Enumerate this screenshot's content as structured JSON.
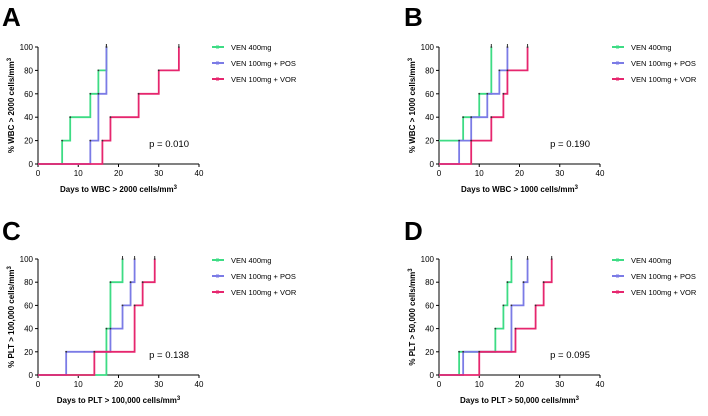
{
  "chart_data": [
    {
      "type": "line",
      "panel": "A",
      "title": "",
      "xlabel": "Days to WBC > 2000 cells/mm",
      "xlabel_sup": "3",
      "ylabel": "% WBC > 2000 cells/mm",
      "ylabel_sup": "3",
      "xlim": [
        0,
        40
      ],
      "ylim": [
        0,
        100
      ],
      "xticks": [
        "0",
        "10",
        "20",
        "30",
        "40"
      ],
      "yticks": [
        "0",
        "20",
        "40",
        "60",
        "80",
        "100"
      ],
      "p_value": "p = 0.010",
      "legend_position": "top-right",
      "series": [
        {
          "name": "VEN 400mg",
          "color": "#3ddc84",
          "steps": [
            [
              0,
              0
            ],
            [
              6,
              20
            ],
            [
              8,
              40
            ],
            [
              13,
              60
            ],
            [
              15,
              80
            ],
            [
              17,
              100
            ]
          ]
        },
        {
          "name": "VEN 100mg + POS",
          "color": "#7b7be6",
          "steps": [
            [
              0,
              0
            ],
            [
              13,
              20
            ],
            [
              15,
              60
            ],
            [
              17,
              100
            ]
          ]
        },
        {
          "name": "VEN 100mg + VOR",
          "color": "#e6266e",
          "steps": [
            [
              0,
              0
            ],
            [
              16,
              20
            ],
            [
              18,
              40
            ],
            [
              25,
              60
            ],
            [
              30,
              80
            ],
            [
              35,
              100
            ]
          ]
        }
      ]
    },
    {
      "type": "line",
      "panel": "B",
      "title": "",
      "xlabel": "Days to WBC > 1000 cells/mm",
      "xlabel_sup": "3",
      "ylabel": "% WBC > 1000 cells/mm",
      "ylabel_sup": "3",
      "xlim": [
        0,
        40
      ],
      "ylim": [
        0,
        100
      ],
      "xticks": [
        "0",
        "10",
        "20",
        "30",
        "40"
      ],
      "yticks": [
        "0",
        "20",
        "40",
        "60",
        "80",
        "100"
      ],
      "p_value": "p = 0.190",
      "legend_position": "top-right",
      "series": [
        {
          "name": "VEN 400mg",
          "color": "#3ddc84",
          "steps": [
            [
              0,
              20
            ],
            [
              6,
              40
            ],
            [
              10,
              60
            ],
            [
              13,
              100
            ]
          ]
        },
        {
          "name": "VEN 100mg + POS",
          "color": "#7b7be6",
          "steps": [
            [
              0,
              0
            ],
            [
              5,
              20
            ],
            [
              8,
              40
            ],
            [
              12,
              60
            ],
            [
              15,
              80
            ],
            [
              17,
              100
            ]
          ]
        },
        {
          "name": "VEN 100mg + VOR",
          "color": "#e6266e",
          "steps": [
            [
              0,
              0
            ],
            [
              8,
              20
            ],
            [
              13,
              40
            ],
            [
              16,
              60
            ],
            [
              17,
              80
            ],
            [
              22,
              100
            ]
          ]
        }
      ]
    },
    {
      "type": "line",
      "panel": "C",
      "title": "",
      "xlabel": "Days to PLT > 100,000 cells/mm",
      "xlabel_sup": "3",
      "ylabel": "% PLT > 100,000 cells/mm",
      "ylabel_sup": "3",
      "xlim": [
        0,
        40
      ],
      "ylim": [
        0,
        100
      ],
      "xticks": [
        "0",
        "10",
        "20",
        "30",
        "40"
      ],
      "yticks": [
        "0",
        "20",
        "40",
        "60",
        "80",
        "100"
      ],
      "p_value": "p = 0.138",
      "legend_position": "top-right",
      "series": [
        {
          "name": "VEN 400mg",
          "color": "#3ddc84",
          "steps": [
            [
              0,
              0
            ],
            [
              17,
              40
            ],
            [
              18,
              80
            ],
            [
              21,
              100
            ]
          ]
        },
        {
          "name": "VEN 100mg + POS",
          "color": "#7b7be6",
          "steps": [
            [
              0,
              0
            ],
            [
              7,
              20
            ],
            [
              18,
              40
            ],
            [
              21,
              60
            ],
            [
              23,
              80
            ],
            [
              24,
              100
            ]
          ]
        },
        {
          "name": "VEN 100mg + VOR",
          "color": "#e6266e",
          "steps": [
            [
              0,
              0
            ],
            [
              14,
              20
            ],
            [
              24,
              60
            ],
            [
              26,
              80
            ],
            [
              29,
              100
            ]
          ]
        }
      ]
    },
    {
      "type": "line",
      "panel": "D",
      "title": "",
      "xlabel": "Days to PLT > 50,000 cells/mm",
      "xlabel_sup": "3",
      "ylabel": "% PLT > 50,000 cells/mm",
      "ylabel_sup": "3",
      "xlim": [
        0,
        40
      ],
      "ylim": [
        0,
        100
      ],
      "xticks": [
        "0",
        "10",
        "20",
        "30",
        "40"
      ],
      "yticks": [
        "0",
        "20",
        "40",
        "60",
        "80",
        "100"
      ],
      "p_value": "p = 0.095",
      "legend_position": "top-right",
      "series": [
        {
          "name": "VEN 400mg",
          "color": "#3ddc84",
          "steps": [
            [
              0,
              0
            ],
            [
              5,
              20
            ],
            [
              14,
              40
            ],
            [
              16,
              60
            ],
            [
              17,
              80
            ],
            [
              18,
              100
            ]
          ]
        },
        {
          "name": "VEN 100mg + POS",
          "color": "#7b7be6",
          "steps": [
            [
              0,
              0
            ],
            [
              6,
              20
            ],
            [
              18,
              60
            ],
            [
              21,
              80
            ],
            [
              22,
              100
            ]
          ]
        },
        {
          "name": "VEN 100mg + VOR",
          "color": "#e6266e",
          "steps": [
            [
              0,
              0
            ],
            [
              10,
              20
            ],
            [
              19,
              40
            ],
            [
              24,
              60
            ],
            [
              26,
              80
            ],
            [
              28,
              100
            ]
          ]
        }
      ]
    }
  ]
}
